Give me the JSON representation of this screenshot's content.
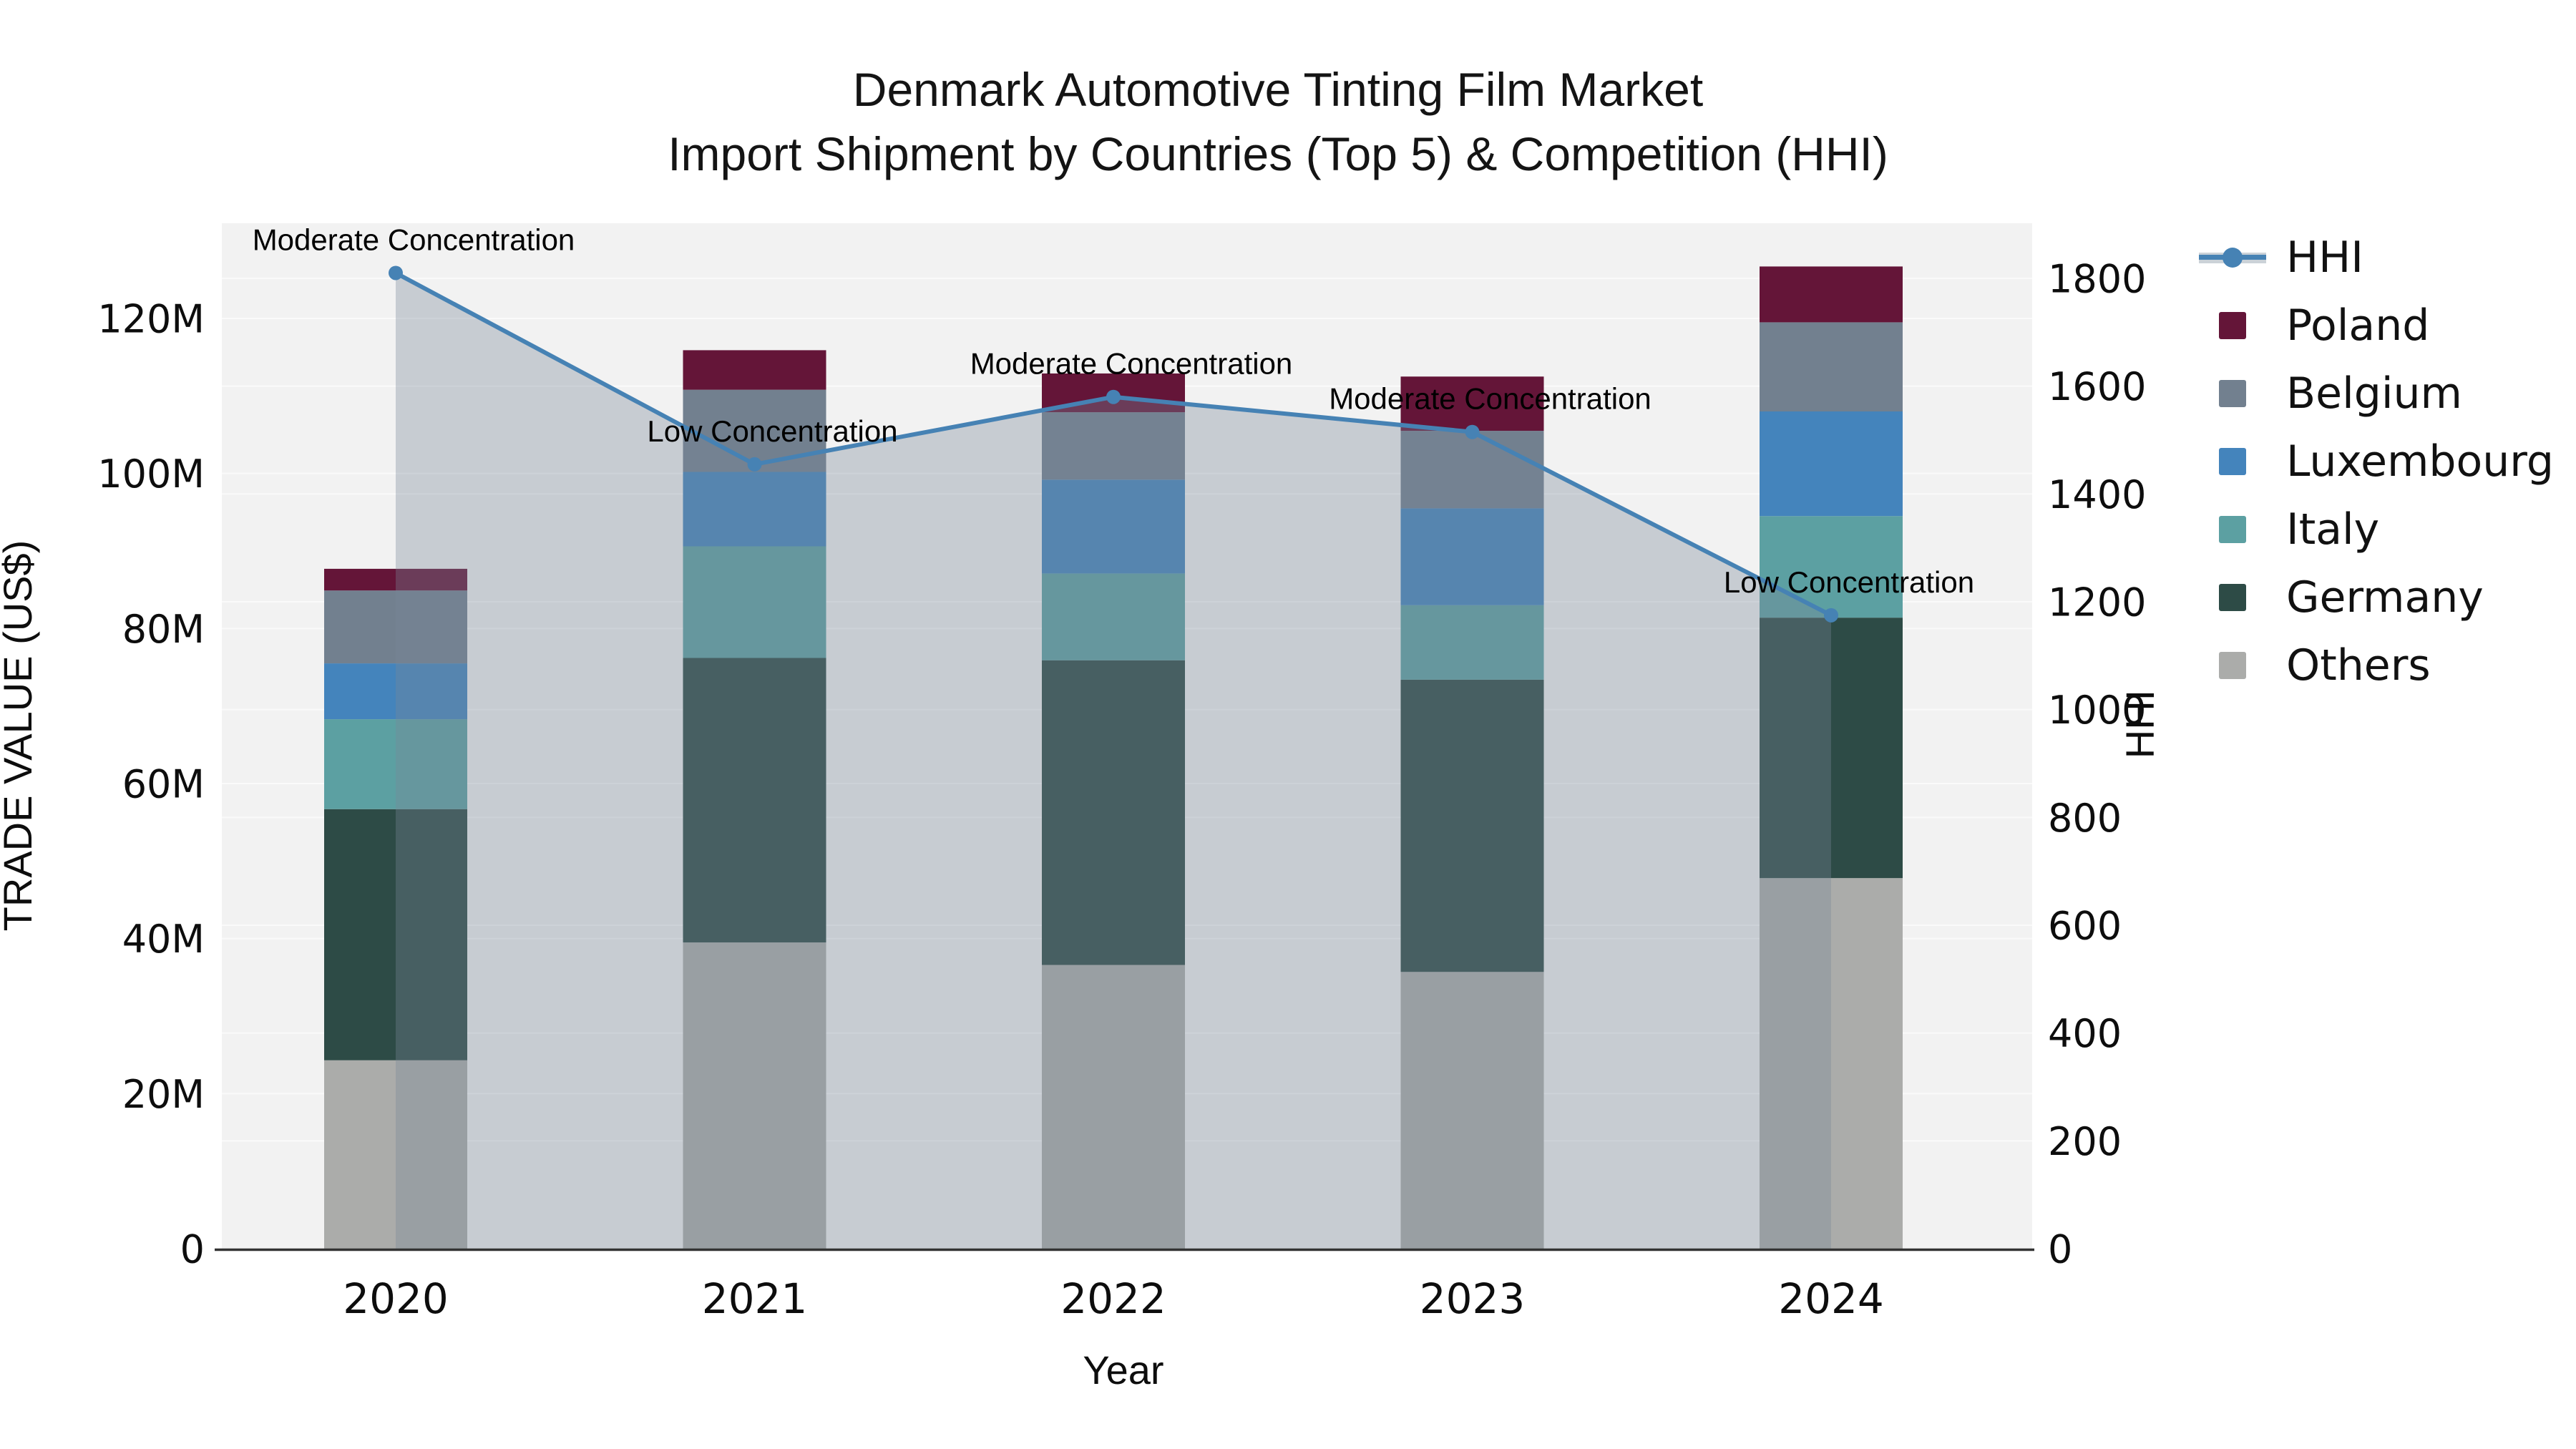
{
  "title": {
    "line1": "Denmark Automotive Tinting Film Market",
    "line2": "Import Shipment by Countries (Top 5) & Competition (HHI)"
  },
  "chart_data": {
    "type": "stacked-bar+line",
    "xlabel": "Year",
    "ylabel_left": "TRADE VALUE (US$)",
    "ylabel_right": "HHI",
    "categories": [
      "2020",
      "2021",
      "2022",
      "2023",
      "2024"
    ],
    "series": [
      {
        "name": "Others",
        "color": "#ABACAA",
        "values": [
          24.3,
          39.5,
          36.6,
          35.7,
          47.8
        ]
      },
      {
        "name": "Germany",
        "color": "#2D4B46",
        "values": [
          32.4,
          36.7,
          39.3,
          37.7,
          33.6
        ]
      },
      {
        "name": "Italy",
        "color": "#5CA0A2",
        "values": [
          11.6,
          14.4,
          11.2,
          9.6,
          13.1
        ]
      },
      {
        "name": "Luxembourg",
        "color": "#4484BC",
        "values": [
          7.2,
          9.6,
          12.1,
          12.5,
          13.5
        ]
      },
      {
        "name": "Belgium",
        "color": "#72808F",
        "values": [
          9.4,
          10.6,
          8.7,
          10.0,
          11.5
        ]
      },
      {
        "name": "Poland",
        "color": "#641538",
        "values": [
          2.8,
          5.1,
          5.0,
          7.0,
          7.2
        ]
      }
    ],
    "line_series": {
      "name": "HHI",
      "color": "#4682B4",
      "area_fill": "rgba(119,136,153,0.35)",
      "values": [
        1810,
        1455,
        1580,
        1515,
        1175
      ],
      "annotations": [
        "Moderate Concentration",
        "Low Concentration",
        "Moderate Concentration",
        "Moderate Concentration",
        "Low Concentration"
      ]
    },
    "axes": {
      "left": {
        "tick_values": [
          0,
          20,
          40,
          60,
          80,
          100,
          120
        ],
        "tick_labels": [
          "0",
          "20M",
          "40M",
          "60M",
          "80M",
          "100M",
          "120M"
        ],
        "range": [
          0,
          132.3
        ]
      },
      "right": {
        "tick_values": [
          0,
          200,
          400,
          600,
          800,
          1000,
          1200,
          1400,
          1600,
          1800
        ],
        "tick_labels": [
          "0",
          "200",
          "400",
          "600",
          "800",
          "1000",
          "1200",
          "1400",
          "1600",
          "1800"
        ],
        "range": [
          0,
          1903
        ]
      }
    },
    "plot_background": "#F2F2F2",
    "gridline_color": "#FAFAFA",
    "axis_line_color": "#333333",
    "legend_order": [
      "HHI",
      "Poland",
      "Belgium",
      "Luxembourg",
      "Italy",
      "Germany",
      "Others"
    ]
  }
}
